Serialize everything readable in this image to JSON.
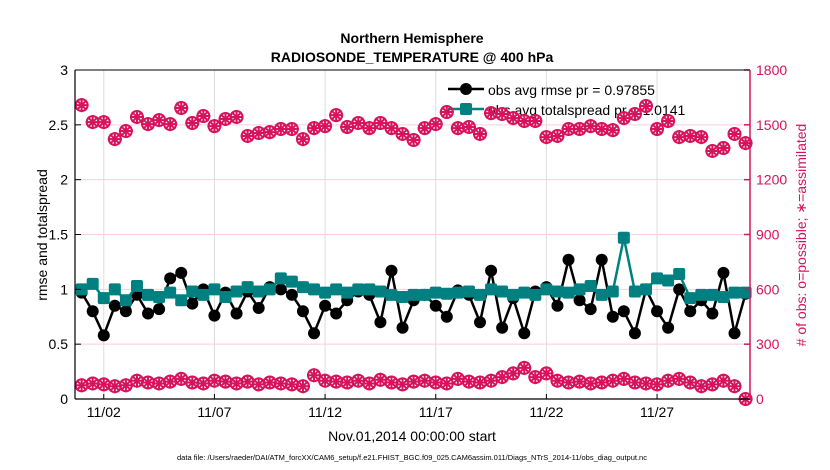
{
  "chart_data": {
    "type": "line",
    "title": [
      "Northern Hemisphere",
      "RADIOSONDE_TEMPERATURE @ 400 hPa"
    ],
    "xlabel": "Nov.01,2014 00:00:00 start",
    "ylabel": "rmse and totalspread",
    "y2label": "# of obs: o=possible; ∗=assimilated",
    "footer": "data file: /Users/raeder/DAI/ATM_forcXX/CAM6_setup/f.e21.FHIST_BGC.f09_025.CAM6assim.011/Diags_NTrS_2014-11/obs_diag_output.nc",
    "x_start_day": 1,
    "x_step_days": 0.5,
    "xlim_days": [
      0.7,
      31.2
    ],
    "xticks": [
      {
        "day": 2,
        "label": "11/02"
      },
      {
        "day": 7,
        "label": "11/07"
      },
      {
        "day": 12,
        "label": "11/12"
      },
      {
        "day": 17,
        "label": "11/17"
      },
      {
        "day": 22,
        "label": "11/22"
      },
      {
        "day": 27,
        "label": "11/27"
      }
    ],
    "ylim": [
      0,
      3
    ],
    "yticks": [
      "0",
      "0.5",
      "1",
      "1.5",
      "2",
      "2.5",
      "3"
    ],
    "y2lim": [
      0,
      1800
    ],
    "y2ticks": [
      "0",
      "300",
      "600",
      "900",
      "1200",
      "1500",
      "1800"
    ],
    "legend": {
      "placement": "top-right",
      "entries": [
        "obs avg rmse pr = 0.97855",
        "obs avg totalspread pr = 1.0141"
      ]
    },
    "colors": {
      "rmse": "#000000",
      "spread": "#008080",
      "counts": "#d6135c",
      "grid": "#dcdcdc",
      "grid2": "#f7cfe0"
    },
    "series": [
      {
        "name": "rmse",
        "values": [
          0.97,
          0.8,
          0.58,
          0.85,
          0.8,
          0.95,
          0.78,
          0.82,
          1.1,
          1.15,
          0.87,
          1.0,
          0.76,
          0.97,
          0.78,
          0.98,
          0.83,
          1.02,
          1.0,
          0.95,
          0.8,
          0.6,
          0.85,
          0.78,
          0.9,
          0.98,
          0.95,
          0.7,
          1.17,
          0.65,
          0.9,
          0.95,
          0.85,
          0.75,
          0.99,
          0.95,
          0.7,
          1.17,
          0.65,
          0.92,
          0.6,
          0.98,
          1.02,
          0.85,
          1.27,
          0.9,
          0.82,
          1.27,
          0.75,
          0.8,
          0.6,
          1.0,
          0.8,
          0.65,
          1.0,
          0.8,
          0.9,
          0.78,
          1.15,
          0.6,
          0.96
        ]
      },
      {
        "name": "totalspread",
        "values": [
          1.0,
          1.05,
          0.92,
          1.0,
          0.9,
          1.03,
          0.95,
          0.93,
          0.97,
          0.9,
          0.98,
          0.95,
          1.0,
          0.93,
          0.98,
          1.02,
          0.98,
          1.0,
          1.1,
          1.07,
          1.02,
          1.0,
          0.97,
          1.0,
          0.97,
          1.0,
          1.0,
          0.98,
          0.95,
          0.93,
          0.95,
          0.95,
          0.97,
          0.96,
          0.97,
          0.98,
          0.95,
          1.0,
          0.98,
          0.95,
          0.97,
          0.95,
          1.0,
          0.98,
          0.97,
          1.0,
          1.03,
          0.95,
          0.98,
          1.47,
          0.98,
          1.0,
          1.1,
          1.08,
          1.14,
          0.92,
          0.95,
          0.95,
          0.93,
          0.97,
          0.97
        ]
      },
      {
        "name": "obs possible (upper)",
        "axis": "right",
        "values": [
          1608,
          1515,
          1515,
          1422,
          1466,
          1543,
          1504,
          1526,
          1504,
          1592,
          1510,
          1548,
          1493,
          1532,
          1543,
          1439,
          1455,
          1460,
          1477,
          1477,
          1422,
          1482,
          1493,
          1553,
          1488,
          1510,
          1482,
          1510,
          1482,
          1450,
          1417,
          1482,
          1504,
          1570,
          1482,
          1488,
          1450,
          1564,
          1559,
          1537,
          1521,
          1521,
          1433,
          1439,
          1477,
          1477,
          1493,
          1477,
          1471,
          1537,
          1559,
          1603,
          1477,
          1521,
          1433,
          1439,
          1433,
          1357,
          1373,
          1450,
          1400
        ]
      },
      {
        "name": "obs assimilated (lower)",
        "axis": "right",
        "values": [
          75,
          85,
          80,
          70,
          75,
          100,
          90,
          85,
          95,
          110,
          90,
          85,
          100,
          95,
          85,
          95,
          80,
          90,
          85,
          80,
          70,
          130,
          100,
          95,
          90,
          100,
          85,
          105,
          90,
          80,
          95,
          100,
          90,
          85,
          110,
          95,
          90,
          100,
          120,
          140,
          170,
          120,
          140,
          100,
          90,
          95,
          85,
          90,
          100,
          110,
          90,
          85,
          80,
          100,
          110,
          90,
          70,
          80,
          100,
          70,
          0
        ]
      }
    ]
  }
}
